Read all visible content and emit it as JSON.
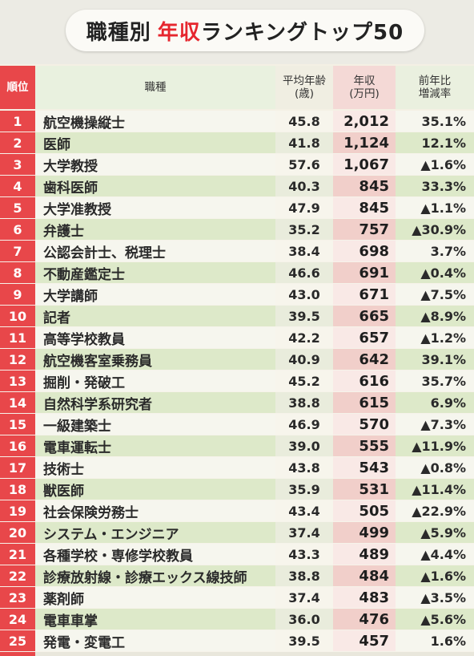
{
  "title": {
    "main": "職種別",
    "accent": "年収",
    "rest": "ランキングトップ50"
  },
  "headers": {
    "rank": "順位",
    "job": "職種",
    "age": "平均年齢\n(歳)",
    "salary": "年収\n(万円)",
    "change": "前年比\n増減率"
  },
  "colors": {
    "rank_red": "#e8474a",
    "title_red": "#e6262e",
    "green_row": "#dde9c9",
    "pink_col": "#f1cfca"
  },
  "chart_data": {
    "type": "table",
    "columns": [
      "順位",
      "職種",
      "平均年齢(歳)",
      "年収(万円)",
      "前年比増減率"
    ],
    "rows": [
      {
        "rank": "1",
        "job": "航空機操縦士",
        "age": "45.8",
        "salary": "2,012",
        "change": "35.1%"
      },
      {
        "rank": "2",
        "job": "医師",
        "age": "41.8",
        "salary": "1,124",
        "change": "12.1%"
      },
      {
        "rank": "3",
        "job": "大学教授",
        "age": "57.6",
        "salary": "1,067",
        "change": "▲1.6%"
      },
      {
        "rank": "4",
        "job": "歯科医師",
        "age": "40.3",
        "salary": "845",
        "change": "33.3%"
      },
      {
        "rank": "5",
        "job": "大学准教授",
        "age": "47.9",
        "salary": "845",
        "change": "▲1.1%"
      },
      {
        "rank": "6",
        "job": "弁護士",
        "age": "35.2",
        "salary": "757",
        "change": "▲30.9%"
      },
      {
        "rank": "7",
        "job": "公認会計士、税理士",
        "age": "38.4",
        "salary": "698",
        "change": "3.7%"
      },
      {
        "rank": "8",
        "job": "不動産鑑定士",
        "age": "46.6",
        "salary": "691",
        "change": "▲0.4%"
      },
      {
        "rank": "9",
        "job": "大学講師",
        "age": "43.0",
        "salary": "671",
        "change": "▲7.5%"
      },
      {
        "rank": "10",
        "job": "記者",
        "age": "39.5",
        "salary": "665",
        "change": "▲8.9%"
      },
      {
        "rank": "11",
        "job": "高等学校教員",
        "age": "42.2",
        "salary": "657",
        "change": "▲1.2%"
      },
      {
        "rank": "12",
        "job": "航空機客室乗務員",
        "age": "40.9",
        "salary": "642",
        "change": "39.1%"
      },
      {
        "rank": "13",
        "job": "掘削・発破工",
        "age": "45.2",
        "salary": "616",
        "change": "35.7%"
      },
      {
        "rank": "14",
        "job": "自然科学系研究者",
        "age": "38.8",
        "salary": "615",
        "change": "6.9%"
      },
      {
        "rank": "15",
        "job": "一級建築士",
        "age": "46.9",
        "salary": "570",
        "change": "▲7.3%"
      },
      {
        "rank": "16",
        "job": "電車運転士",
        "age": "39.0",
        "salary": "555",
        "change": "▲11.9%"
      },
      {
        "rank": "17",
        "job": "技術士",
        "age": "43.8",
        "salary": "543",
        "change": "▲0.8%"
      },
      {
        "rank": "18",
        "job": "獣医師",
        "age": "35.9",
        "salary": "531",
        "change": "▲11.4%"
      },
      {
        "rank": "19",
        "job": "社会保険労務士",
        "age": "43.4",
        "salary": "505",
        "change": "▲22.9%"
      },
      {
        "rank": "20",
        "job": "システム・エンジニア",
        "age": "37.4",
        "salary": "499",
        "change": "▲5.9%"
      },
      {
        "rank": "21",
        "job": "各種学校・専修学校教員",
        "age": "43.3",
        "salary": "489",
        "change": "▲4.4%"
      },
      {
        "rank": "22",
        "job": "診療放射線・診療エックス線技師",
        "age": "38.8",
        "salary": "484",
        "change": "▲1.6%"
      },
      {
        "rank": "23",
        "job": "薬剤師",
        "age": "37.4",
        "salary": "483",
        "change": "▲3.5%"
      },
      {
        "rank": "24",
        "job": "電車車掌",
        "age": "36.0",
        "salary": "476",
        "change": "▲5.6%"
      },
      {
        "rank": "25",
        "job": "発電・変電工",
        "age": "39.5",
        "salary": "457",
        "change": "1.6%"
      }
    ]
  }
}
